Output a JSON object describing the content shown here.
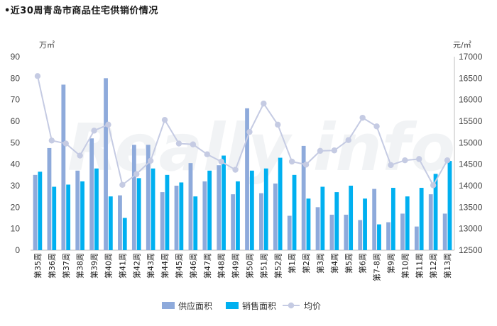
{
  "title": "•近30周青岛市商品住宅供销价情况",
  "watermark": "Really info",
  "chart_data": {
    "type": "bar",
    "title": "•近30周青岛市商品住宅供销价情况",
    "categories": [
      "第35周",
      "第36周",
      "第37周",
      "第38周",
      "第39周",
      "第40周",
      "第41周",
      "第42周",
      "第43周",
      "第44周",
      "第45周",
      "第46周",
      "第47周",
      "第48周",
      "第49周",
      "第50周",
      "第51周",
      "第52周",
      "第1周",
      "第2周",
      "第3周",
      "第4周",
      "第5周",
      "第6周",
      "第7-8周",
      "第9周",
      "第10周",
      "第11周",
      "第12周",
      "第13周"
    ],
    "left_unit": "万㎡",
    "right_unit": "元/㎡",
    "ylim_left": [
      0,
      90
    ],
    "yticks_left": [
      0,
      10,
      20,
      30,
      40,
      50,
      60,
      70,
      80,
      90
    ],
    "ylim_right": [
      12500,
      17000
    ],
    "yticks_right": [
      12500,
      13000,
      13500,
      14000,
      14500,
      15000,
      15500,
      16000,
      16500,
      17000
    ],
    "legend_position": "bottom",
    "series": [
      {
        "name": "供应面积",
        "kind": "bar",
        "axis": "left",
        "color": "#8eaadb",
        "values": [
          35,
          47.5,
          77,
          37,
          52,
          80,
          25.5,
          49,
          49,
          27,
          30,
          40.5,
          32,
          39.5,
          26,
          66,
          26.5,
          31,
          16,
          48.5,
          20,
          16.5,
          16.5,
          14,
          28.5,
          13,
          17,
          11,
          26,
          17
        ]
      },
      {
        "name": "销售面积",
        "kind": "bar",
        "axis": "left",
        "color": "#00b0f0",
        "values": [
          36.5,
          29.5,
          30.5,
          32,
          38,
          25,
          15,
          33.5,
          38,
          35,
          31.5,
          25,
          37,
          44,
          32,
          37,
          38,
          43,
          35,
          24,
          29.5,
          27,
          30,
          24,
          12,
          29,
          25,
          29,
          35.5,
          41.5
        ]
      },
      {
        "name": "均价",
        "kind": "line",
        "axis": "right",
        "color": "#c5cbe3",
        "values": [
          16550,
          15050,
          14980,
          14700,
          15280,
          15420,
          14020,
          14270,
          14580,
          15530,
          14980,
          14960,
          14730,
          14560,
          14370,
          15250,
          15910,
          15420,
          14560,
          14490,
          14810,
          14820,
          15060,
          15580,
          15380,
          14480,
          14590,
          14620,
          14010,
          14590
        ]
      }
    ]
  }
}
